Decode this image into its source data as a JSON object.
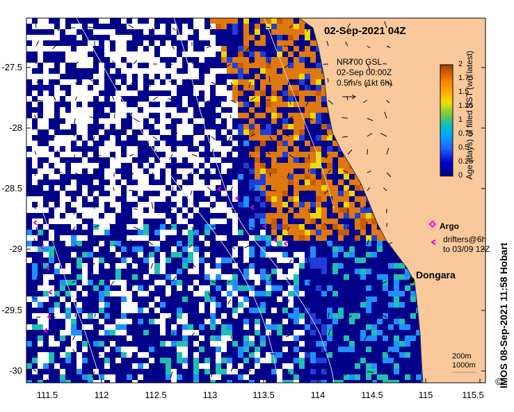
{
  "title": "02-Sep-2021 04Z",
  "axes": {
    "y_ticks": [
      "-27.5",
      "-28",
      "-28.5",
      "-29",
      "-29.5",
      "-30"
    ],
    "x_ticks": [
      "111.5",
      "112",
      "112.5",
      "113",
      "113.5",
      "114",
      "114.5",
      "115",
      "115.5"
    ],
    "lon_range": [
      111.3,
      115.6
    ],
    "lat_range": [
      -30.1,
      -27.0
    ]
  },
  "current_legend": {
    "line1": "NRT00 GSL",
    "line2": "02-Sep 00:00Z",
    "line3": "0.5m/s (1kt 6h)"
  },
  "colorbar": {
    "ticks": [
      "2",
      "1.75",
      "1.5",
      "1.25",
      "1",
      "0.75",
      "0.5",
      "0.25",
      "0"
    ],
    "label": "Age (days) of filled SST (wrt latest)",
    "colors": [
      "#00008b",
      "#0000cd",
      "#1e64ff",
      "#00aaff",
      "#00c0c0",
      "#40c080",
      "#90d030",
      "#f0e000",
      "#ffb000",
      "#ff8000",
      "#d06000",
      "#a04000"
    ]
  },
  "place": {
    "name": "Dongara"
  },
  "argo": {
    "label": "Argo"
  },
  "drifters": {
    "line1": "drifters@6h",
    "line2": "to 03/09 12Z"
  },
  "scale": {
    "line1": "200m",
    "line2": "1000m"
  },
  "credit": {
    "symbol": "©",
    "text": "IMOS 08-Sep-2021 11:58 Hobart"
  },
  "palette": {
    "land": "#f9c99c",
    "no_data": "#ffffff",
    "deep_blue": "#00008b",
    "blue": "#1e40d8",
    "sky": "#1e90ff",
    "teal": "#20c0b0",
    "orange": "#e07810",
    "dark_orange": "#c85a00",
    "yellow": "#f0d800",
    "argo": "#ff00ff",
    "drifter": "#e000e0"
  }
}
